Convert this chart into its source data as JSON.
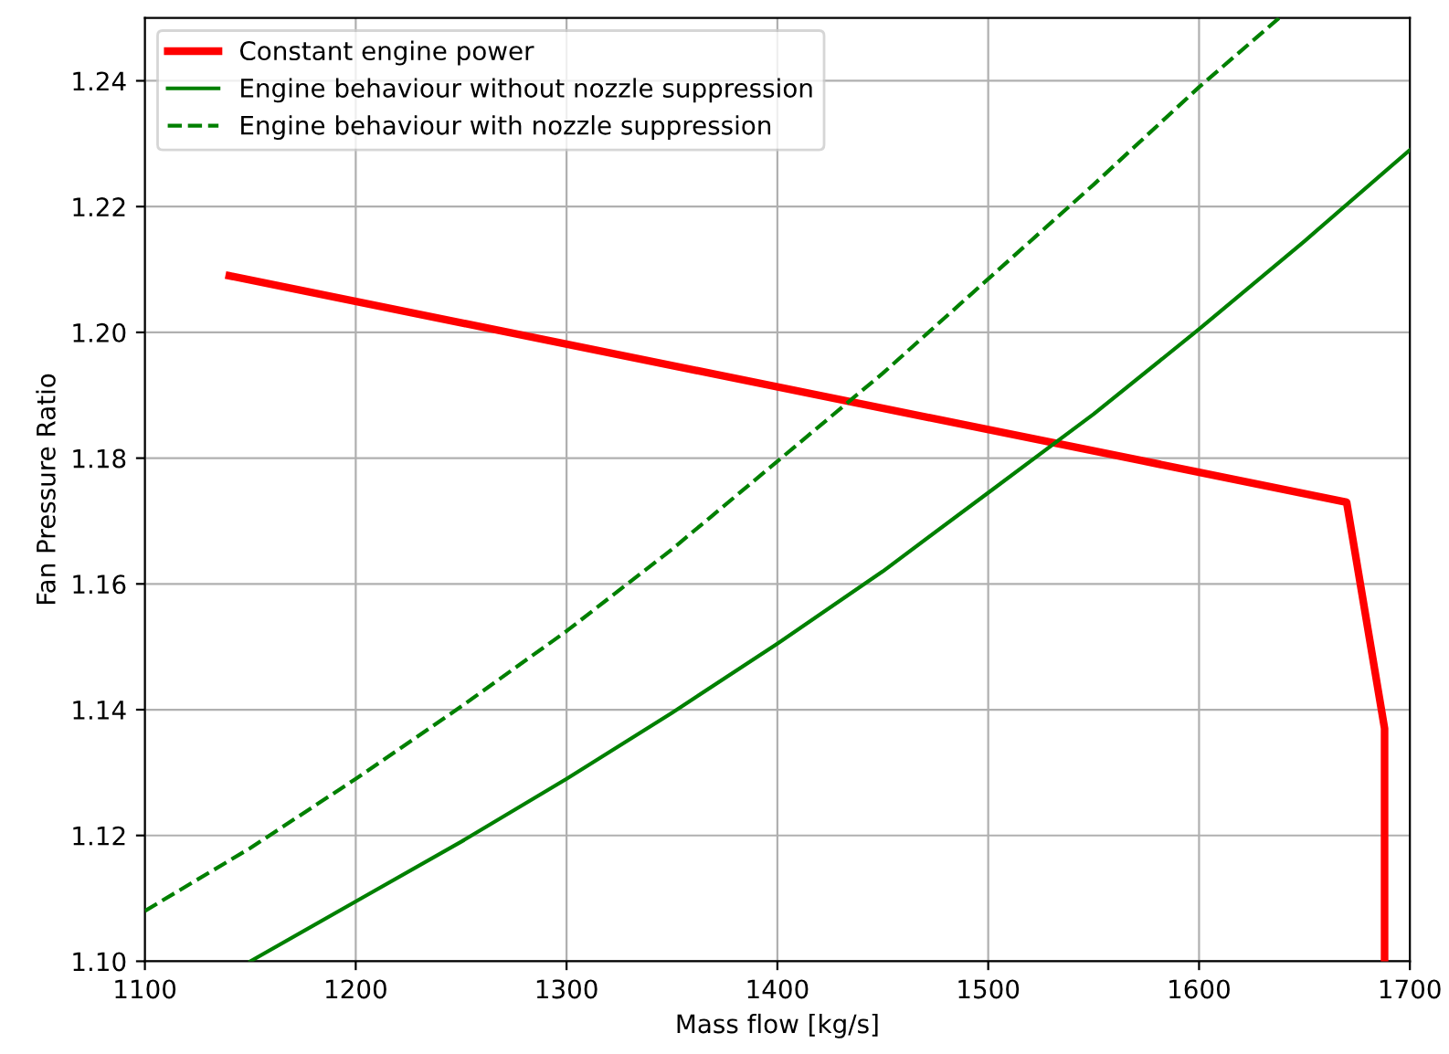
{
  "chart_data": {
    "type": "line",
    "xlabel": "Mass flow [kg/s]",
    "ylabel": "Fan Pressure Ratio",
    "xlim": [
      1100,
      1700
    ],
    "ylim": [
      1.1,
      1.25
    ],
    "xticks": [
      1100,
      1200,
      1300,
      1400,
      1500,
      1600,
      1700
    ],
    "yticks": [
      {
        "value": 1.1,
        "label": "1.10"
      },
      {
        "value": 1.12,
        "label": "1.12"
      },
      {
        "value": 1.14,
        "label": "1.14"
      },
      {
        "value": 1.16,
        "label": "1.16"
      },
      {
        "value": 1.18,
        "label": "1.18"
      },
      {
        "value": 1.2,
        "label": "1.20"
      },
      {
        "value": 1.22,
        "label": "1.22"
      },
      {
        "value": 1.24,
        "label": "1.24"
      }
    ],
    "grid": true,
    "legend": "top left",
    "marker": "none",
    "series": [
      {
        "name": "Constant engine power",
        "color": "#ff0000",
        "line_style": "solid",
        "x": [
          1140,
          1670,
          1688,
          1688
        ],
        "values": [
          1.209,
          1.173,
          1.137,
          1.1
        ]
      },
      {
        "name": "Engine behaviour without nozzle suppression",
        "color": "#008000",
        "line_style": "solid",
        "x": [
          1150,
          1200,
          1250,
          1300,
          1350,
          1400,
          1450,
          1500,
          1550,
          1600,
          1650,
          1700
        ],
        "values": [
          1.1,
          1.1095,
          1.119,
          1.129,
          1.1395,
          1.1505,
          1.162,
          1.1745,
          1.187,
          1.2005,
          1.2145,
          1.229
        ]
      },
      {
        "name": "Engine behaviour with nozzle suppression",
        "color": "#008000",
        "line_style": "dashed",
        "x": [
          1100,
          1150,
          1200,
          1250,
          1300,
          1350,
          1400,
          1450,
          1500,
          1550,
          1600,
          1638
        ],
        "values": [
          1.108,
          1.118,
          1.129,
          1.1405,
          1.1525,
          1.1655,
          1.1795,
          1.1935,
          1.2085,
          1.2235,
          1.239,
          1.25
        ]
      }
    ]
  }
}
